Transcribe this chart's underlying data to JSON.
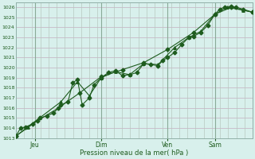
{
  "title": "",
  "xlabel": "Pression niveau de la mer( hPa )",
  "bg_color": "#d8f0ec",
  "plot_bg_color": "#d8f0ec",
  "grid_color_h": "#c8b8c8",
  "grid_color_v": "#b8c8c0",
  "line_color": "#1e5c1e",
  "ylim": [
    1013,
    1026.5
  ],
  "yticks": [
    1013,
    1014,
    1015,
    1016,
    1017,
    1018,
    1019,
    1020,
    1021,
    1022,
    1023,
    1024,
    1025,
    1026
  ],
  "xtick_labels": [
    "Jeu",
    "Dim",
    "Ven",
    "Sam"
  ],
  "xtick_positions": [
    0.08,
    0.36,
    0.64,
    0.84
  ],
  "vline_positions": [
    0.08,
    0.36,
    0.64,
    0.84
  ],
  "series1": [
    [
      0.0,
      1013.2
    ],
    [
      0.02,
      1014.0
    ],
    [
      0.04,
      1014.1
    ],
    [
      0.07,
      1014.4
    ],
    [
      0.1,
      1015.0
    ],
    [
      0.13,
      1015.2
    ],
    [
      0.16,
      1015.5
    ],
    [
      0.19,
      1016.3
    ],
    [
      0.22,
      1016.6
    ],
    [
      0.24,
      1018.5
    ],
    [
      0.26,
      1018.8
    ],
    [
      0.28,
      1016.3
    ],
    [
      0.31,
      1017.0
    ],
    [
      0.33,
      1018.3
    ],
    [
      0.36,
      1019.0
    ],
    [
      0.39,
      1019.5
    ],
    [
      0.42,
      1019.7
    ],
    [
      0.45,
      1019.2
    ],
    [
      0.48,
      1019.3
    ],
    [
      0.51,
      1019.5
    ],
    [
      0.54,
      1020.4
    ],
    [
      0.57,
      1020.3
    ],
    [
      0.6,
      1020.2
    ],
    [
      0.62,
      1020.7
    ],
    [
      0.64,
      1021.0
    ],
    [
      0.67,
      1021.5
    ],
    [
      0.7,
      1022.3
    ],
    [
      0.73,
      1023.0
    ],
    [
      0.75,
      1023.1
    ],
    [
      0.78,
      1023.5
    ],
    [
      0.81,
      1024.2
    ],
    [
      0.84,
      1025.3
    ],
    [
      0.86,
      1025.8
    ],
    [
      0.88,
      1026.0
    ],
    [
      0.91,
      1026.1
    ],
    [
      0.93,
      1026.0
    ],
    [
      0.96,
      1025.8
    ],
    [
      1.0,
      1025.5
    ]
  ],
  "series2": [
    [
      0.0,
      1013.2
    ],
    [
      0.05,
      1014.1
    ],
    [
      0.1,
      1015.0
    ],
    [
      0.19,
      1016.6
    ],
    [
      0.26,
      1018.6
    ],
    [
      0.31,
      1017.2
    ],
    [
      0.36,
      1019.0
    ],
    [
      0.42,
      1019.6
    ],
    [
      0.48,
      1019.3
    ],
    [
      0.54,
      1020.4
    ],
    [
      0.6,
      1020.3
    ],
    [
      0.67,
      1022.0
    ],
    [
      0.73,
      1023.0
    ],
    [
      0.78,
      1023.6
    ],
    [
      0.84,
      1025.3
    ],
    [
      0.89,
      1026.0
    ],
    [
      0.96,
      1025.7
    ],
    [
      1.0,
      1025.5
    ]
  ],
  "series3": [
    [
      0.0,
      1013.2
    ],
    [
      0.09,
      1014.7
    ],
    [
      0.18,
      1016.0
    ],
    [
      0.27,
      1017.5
    ],
    [
      0.36,
      1019.1
    ],
    [
      0.45,
      1019.8
    ],
    [
      0.54,
      1020.5
    ],
    [
      0.64,
      1021.8
    ],
    [
      0.75,
      1023.5
    ],
    [
      0.84,
      1025.3
    ],
    [
      0.91,
      1026.0
    ],
    [
      1.0,
      1025.5
    ]
  ]
}
